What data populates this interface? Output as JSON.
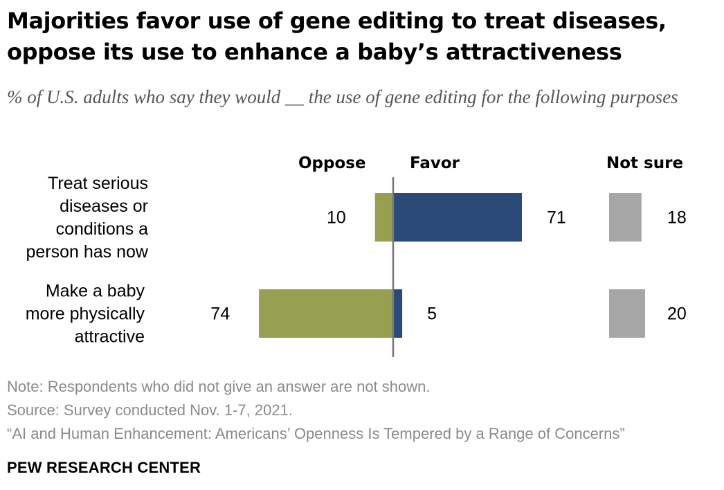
{
  "title": "Majorities favor use of gene editing to treat diseases, oppose its use to enhance a baby’s attractiveness",
  "subtitle": "% of U.S. adults who say they would __ the use of gene editing for the following purposes",
  "headers": {
    "oppose": "Oppose",
    "favor": "Favor",
    "not_sure": "Not sure"
  },
  "chart_data": {
    "type": "bar",
    "orientation": "horizontal-diverging",
    "categories": [
      [
        "Treat serious",
        "diseases or",
        "conditions a",
        "person has now"
      ],
      [
        "Make a baby",
        "more physically",
        "attractive"
      ]
    ],
    "series": [
      {
        "name": "Oppose",
        "values": [
          10,
          74
        ],
        "color": "#969f52"
      },
      {
        "name": "Favor",
        "values": [
          71,
          5
        ],
        "color": "#2b4a78"
      },
      {
        "name": "Not sure",
        "values": [
          18,
          20
        ],
        "color": "#a6a6a6"
      }
    ],
    "axis_line_color": "#777777"
  },
  "notes": [
    "Note: Respondents who did not give an answer are not shown.",
    "Source: Survey conducted Nov. 1-7, 2021.",
    "“AI and Human Enhancement: Americans’ Openness Is Tempered by a Range of Concerns”"
  ],
  "brand": "PEW RESEARCH CENTER"
}
